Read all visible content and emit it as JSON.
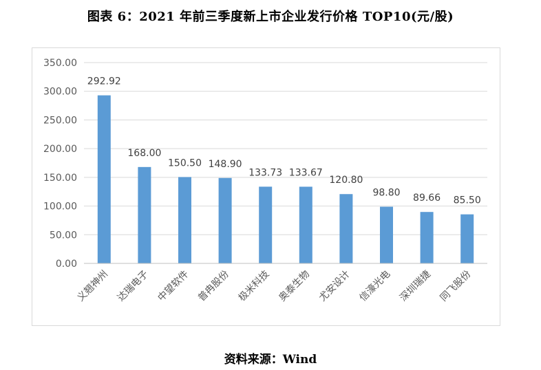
{
  "figure": {
    "title": "图表 6：2021 年前三季度新上市企业发行价格 TOP10(元/股)",
    "source": "资料来源：Wind"
  },
  "chart_data": {
    "type": "bar",
    "title": "",
    "xlabel": "",
    "ylabel": "",
    "categories": [
      "义翘神州",
      "达瑞电子",
      "中望软件",
      "普冉股份",
      "极米科技",
      "奥泰生物",
      "尤安设计",
      "信濠光电",
      "深圳瑞捷",
      "同飞股份"
    ],
    "values": [
      292.92,
      168.0,
      150.5,
      148.9,
      133.73,
      133.67,
      120.8,
      98.8,
      89.66,
      85.5
    ],
    "data_labels": [
      "292.92",
      "168.00",
      "150.50",
      "148.90",
      "133.73",
      "133.67",
      "120.80",
      "98.80",
      "89.66",
      "85.50"
    ],
    "ylim": [
      0,
      350
    ],
    "yticks": [
      "0.00",
      "50.00",
      "100.00",
      "150.00",
      "200.00",
      "250.00",
      "300.00",
      "350.00"
    ],
    "grid": true,
    "legend": "none",
    "bar_color": "#5b9bd5",
    "grid_color": "#d9d9d9"
  }
}
